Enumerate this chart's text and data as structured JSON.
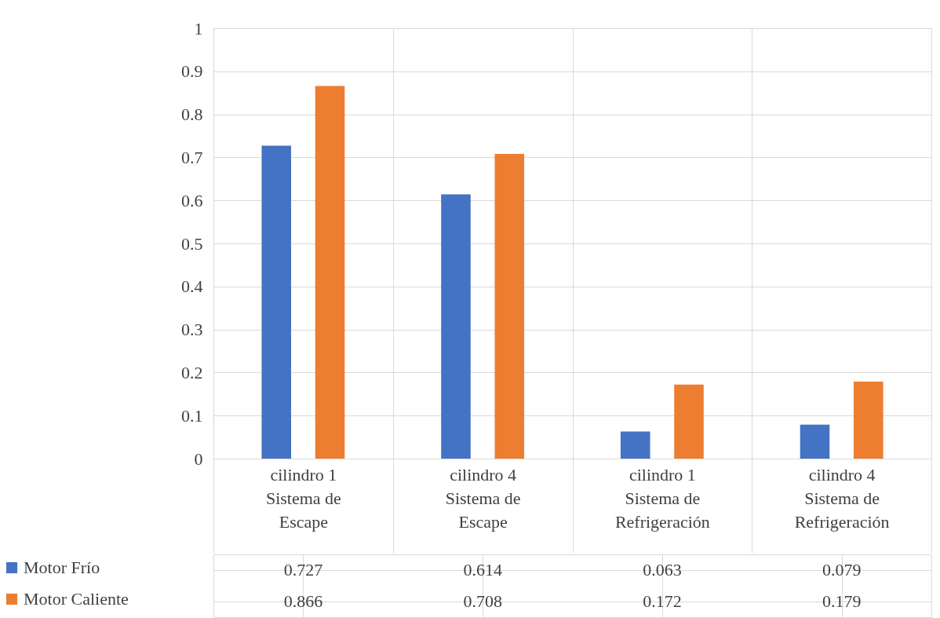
{
  "chart_data": {
    "type": "bar",
    "categories": [
      "cilindro 1 Sistema de Escape",
      "cilindro 4 Sistema de Escape",
      "cilindro 1 Sistema de Refrigeración",
      "cilindro 4 Sistema de Refrigeración"
    ],
    "series": [
      {
        "name": "Motor Frío",
        "color": "#4472c4",
        "values": [
          0.727,
          0.614,
          0.063,
          0.079
        ]
      },
      {
        "name": "Motor Caliente",
        "color": "#ed7d31",
        "values": [
          0.866,
          0.708,
          0.172,
          0.179
        ]
      }
    ],
    "ylim": [
      0,
      1
    ],
    "yticks": [
      0,
      0.1,
      0.2,
      0.3,
      0.4,
      0.5,
      0.6,
      0.7,
      0.8,
      0.9,
      1
    ],
    "grid": true,
    "legend": "bottom",
    "data_labels": true
  }
}
